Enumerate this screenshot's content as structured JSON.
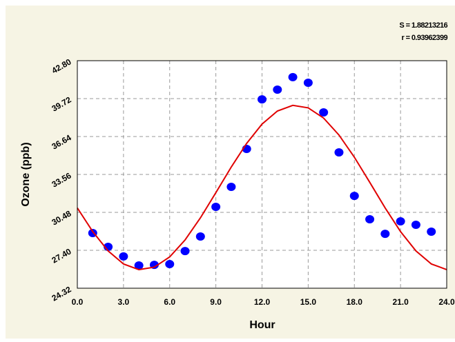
{
  "chart_data": {
    "type": "scatter",
    "xlabel": "Hour",
    "ylabel": "Ozone (ppb)",
    "annotations": [
      "S = 1.88213216",
      "r = 0.93962399"
    ],
    "xlim": [
      0,
      24
    ],
    "ylim": [
      24.32,
      42.8
    ],
    "xticks": [
      {
        "value": 0,
        "label": "0.0"
      },
      {
        "value": 3,
        "label": "3.0"
      },
      {
        "value": 6,
        "label": "6.0"
      },
      {
        "value": 9,
        "label": "9.0"
      },
      {
        "value": 12,
        "label": "12.0"
      },
      {
        "value": 15,
        "label": "15.0"
      },
      {
        "value": 18,
        "label": "18.0"
      },
      {
        "value": 21,
        "label": "21.0"
      },
      {
        "value": 24,
        "label": "24.0"
      }
    ],
    "yticks": [
      24.32,
      {
        "value": 27.4,
        "label": "27.40"
      },
      30.48,
      33.56,
      36.64,
      39.72,
      {
        "value": 42.8,
        "label": "42.80"
      }
    ],
    "grid": true,
    "series": [
      {
        "kind": "points",
        "color": "#0000ff",
        "x": [
          1,
          2,
          3,
          4,
          5,
          6,
          7,
          8,
          9,
          10,
          11,
          12,
          13,
          14,
          15,
          16,
          17,
          18,
          19,
          20,
          21,
          22,
          23
        ],
        "values": [
          28.8,
          27.68,
          26.9,
          26.17,
          26.22,
          26.28,
          27.34,
          28.52,
          30.93,
          32.55,
          35.63,
          39.66,
          40.45,
          41.46,
          41.01,
          38.6,
          35.35,
          31.82,
          29.92,
          28.74,
          29.75,
          29.47,
          28.91
        ]
      },
      {
        "kind": "line",
        "color": "#e00000",
        "x": [
          0,
          1,
          2,
          3,
          4,
          5,
          6,
          7,
          8,
          9,
          10,
          11,
          12,
          13,
          14,
          15,
          16,
          17,
          18,
          19,
          20,
          21,
          22,
          23,
          24
        ],
        "values": [
          30.84,
          28.92,
          27.35,
          26.29,
          25.83,
          26.03,
          26.86,
          28.24,
          30.04,
          32.08,
          34.16,
          36.08,
          37.65,
          38.71,
          39.17,
          38.97,
          38.14,
          36.76,
          34.96,
          32.92,
          30.84,
          28.92,
          27.35,
          26.29,
          25.83
        ]
      }
    ]
  }
}
